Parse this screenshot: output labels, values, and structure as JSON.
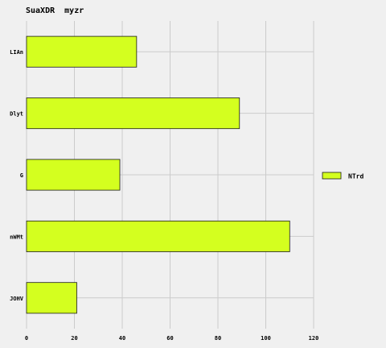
{
  "chart_data": {
    "type": "bar",
    "orientation": "horizontal",
    "title": "SuaXDR  myzr",
    "xlabel": "",
    "ylabel": "",
    "categories": [
      "LIAn",
      "Dlyt",
      "G",
      "nWMt",
      "JOHV"
    ],
    "series": [
      {
        "name": "NTrd",
        "values": [
          46,
          89,
          39,
          110,
          21
        ]
      }
    ],
    "xlim": [
      0,
      120
    ],
    "xticks": [
      0,
      20,
      40,
      60,
      80,
      100,
      120
    ],
    "grid": true,
    "legend_position": "right",
    "colors": {
      "bar": "#d4ff1f",
      "bar_edge": "#1a1a1a",
      "grid": "#cbcbcb",
      "background": "#f0f0f0"
    }
  }
}
